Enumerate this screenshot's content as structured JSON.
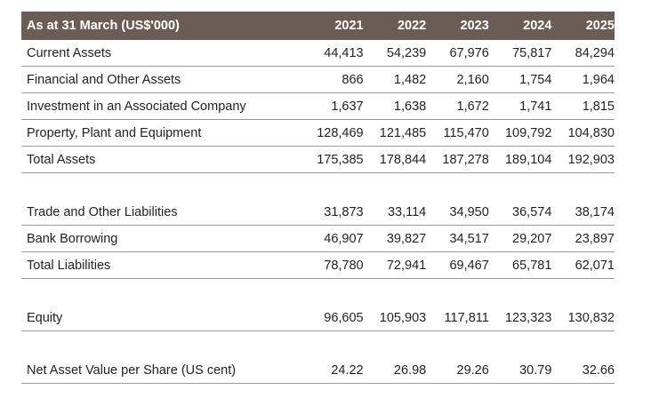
{
  "table": {
    "header": {
      "label": "As at 31 March (US$'000)",
      "years": [
        "2021",
        "2022",
        "2023",
        "2024",
        "2025"
      ]
    },
    "sections": [
      {
        "rows": [
          {
            "label": "Current Assets",
            "values": [
              "44,413",
              "54,239",
              "67,976",
              "75,817",
              "84,294"
            ]
          },
          {
            "label": "Financial and Other Assets",
            "values": [
              "866",
              "1,482",
              "2,160",
              "1,754",
              "1,964"
            ]
          },
          {
            "label": "Investment in an Associated Company",
            "values": [
              "1,637",
              "1,638",
              "1,672",
              "1,741",
              "1,815"
            ]
          },
          {
            "label": "Property, Plant and Equipment",
            "values": [
              "128,469",
              "121,485",
              "115,470",
              "109,792",
              "104,830"
            ]
          },
          {
            "label": "Total Assets",
            "values": [
              "175,385",
              "178,844",
              "187,278",
              "189,104",
              "192,903"
            ]
          }
        ]
      },
      {
        "rows": [
          {
            "label": "Trade and Other Liabilities",
            "values": [
              "31,873",
              "33,114",
              "34,950",
              "36,574",
              "38,174"
            ]
          },
          {
            "label": "Bank Borrowing",
            "values": [
              "46,907",
              "39,827",
              "34,517",
              "29,207",
              "23,897"
            ]
          },
          {
            "label": "Total Liabilities",
            "values": [
              "78,780",
              "72,941",
              "69,467",
              "65,781",
              "62,071"
            ]
          }
        ]
      },
      {
        "rows": [
          {
            "label": "Equity",
            "values": [
              "96,605",
              "105,903",
              "117,811",
              "123,323",
              "130,832"
            ]
          }
        ]
      },
      {
        "rows": [
          {
            "label": "Net Asset Value per Share (US cent)",
            "values": [
              "24.22",
              "26.98",
              "29.26",
              "30.79",
              "32.66"
            ]
          }
        ]
      }
    ]
  }
}
